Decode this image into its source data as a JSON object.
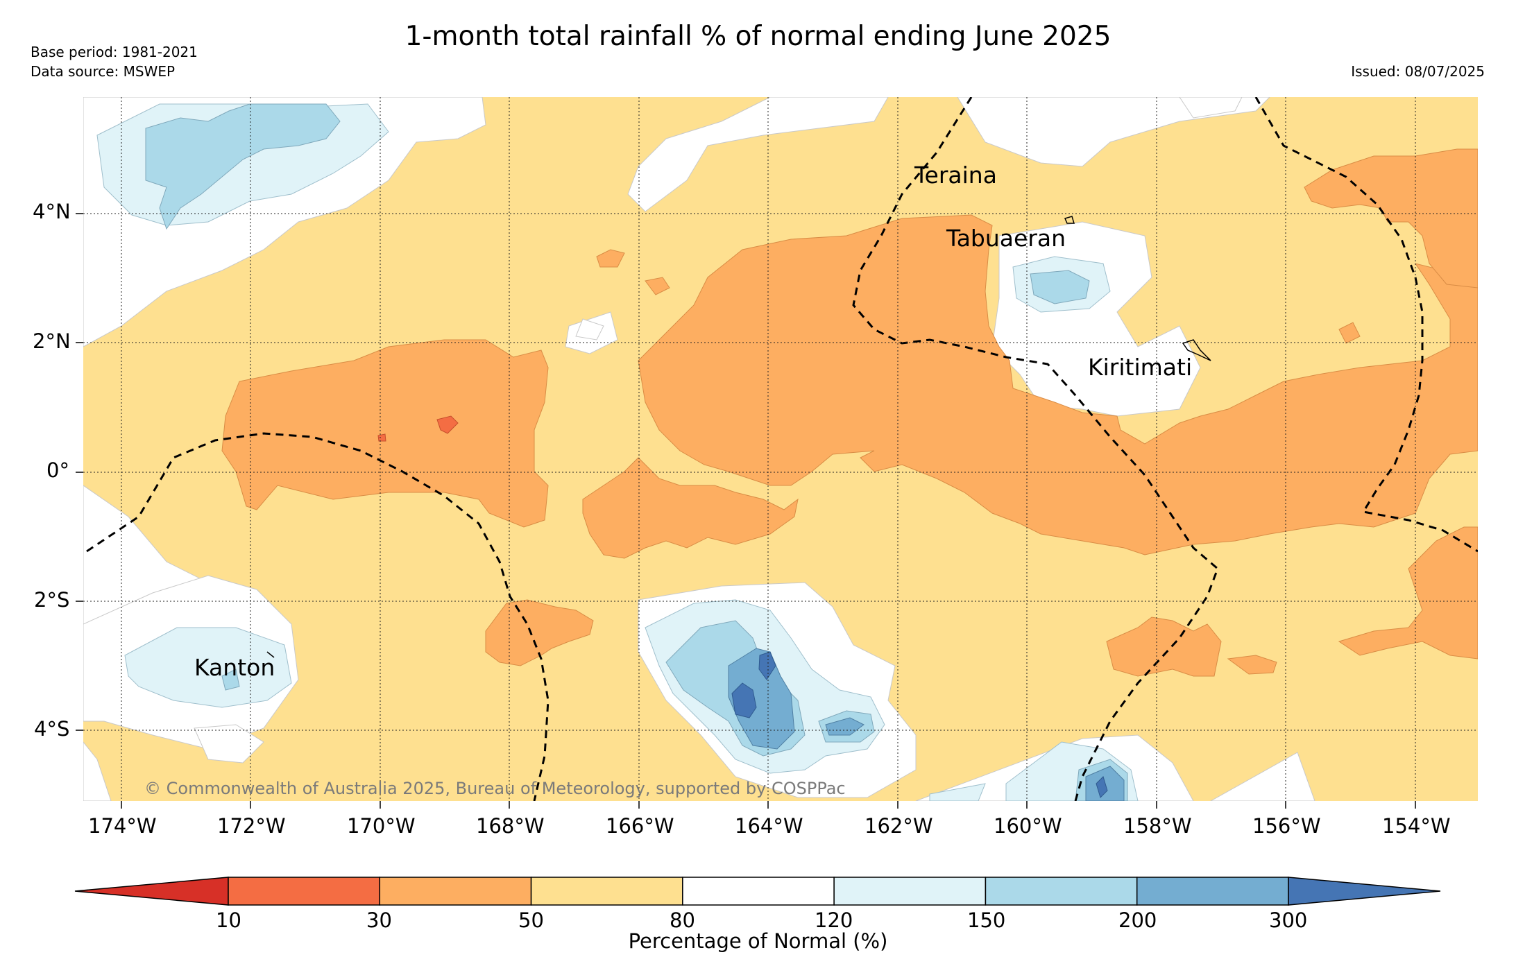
{
  "title": "1-month total rainfall % of normal ending June 2025",
  "base_period": "Base period: 1981-2021",
  "data_source": "Data source: MSWEP",
  "issued": "Issued: 08/07/2025",
  "copyright": "© Commonwealth of Australia 2025, Bureau of Meteorology, supported by COSPPac",
  "lon_ticks": [
    "174°W",
    "172°W",
    "170°W",
    "168°W",
    "166°W",
    "164°W",
    "162°W",
    "160°W",
    "158°W",
    "156°W",
    "154°W"
  ],
  "lat_ticks": [
    "4°N",
    "2°N",
    "0°",
    "2°S",
    "4°S"
  ],
  "places": {
    "teraina": "Teraina",
    "tabuaeran": "Tabuaeran",
    "kiritimati": "Kiritimati",
    "kanton": "Kanton"
  },
  "colorbar": {
    "label": "Percentage of Normal (%)",
    "boundaries": [
      "10",
      "30",
      "50",
      "80",
      "120",
      "150",
      "200",
      "300"
    ],
    "colors": {
      "below_10": "#d73027",
      "10_30": "#f46d43",
      "30_50": "#fdae61",
      "50_80": "#fee090",
      "80_120": "#ffffff",
      "120_150": "#e0f3f8",
      "150_200": "#abd9e9",
      "200_300": "#74add1",
      "above_300": "#4575b4"
    }
  }
}
